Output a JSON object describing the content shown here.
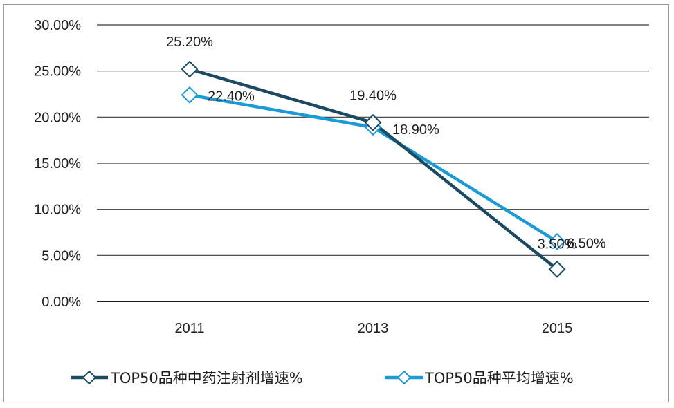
{
  "chart_data": {
    "type": "line",
    "x": [
      "2011",
      "2013",
      "2015"
    ],
    "ylim": [
      0,
      30
    ],
    "y_ticks": [
      "0.00%",
      "5.00%",
      "10.00%",
      "15.00%",
      "20.00%",
      "25.00%",
      "30.00%"
    ],
    "y_tick_values": [
      0,
      5,
      10,
      15,
      20,
      25,
      30
    ],
    "grid": true,
    "legend_position": "bottom",
    "series": [
      {
        "name": "TOP50品种中药注射剂增速%",
        "values": [
          25.2,
          19.4,
          3.5
        ],
        "labels": [
          "25.20%",
          "19.40%",
          "3.50%"
        ],
        "color": "#1b4a63",
        "marker": "diamond"
      },
      {
        "name": "TOP50品种平均增速%",
        "values": [
          22.4,
          18.9,
          6.5
        ],
        "labels": [
          "22.40%",
          "18.90%",
          "6.50%"
        ],
        "color": "#1a9ad6",
        "marker": "diamond"
      }
    ]
  }
}
